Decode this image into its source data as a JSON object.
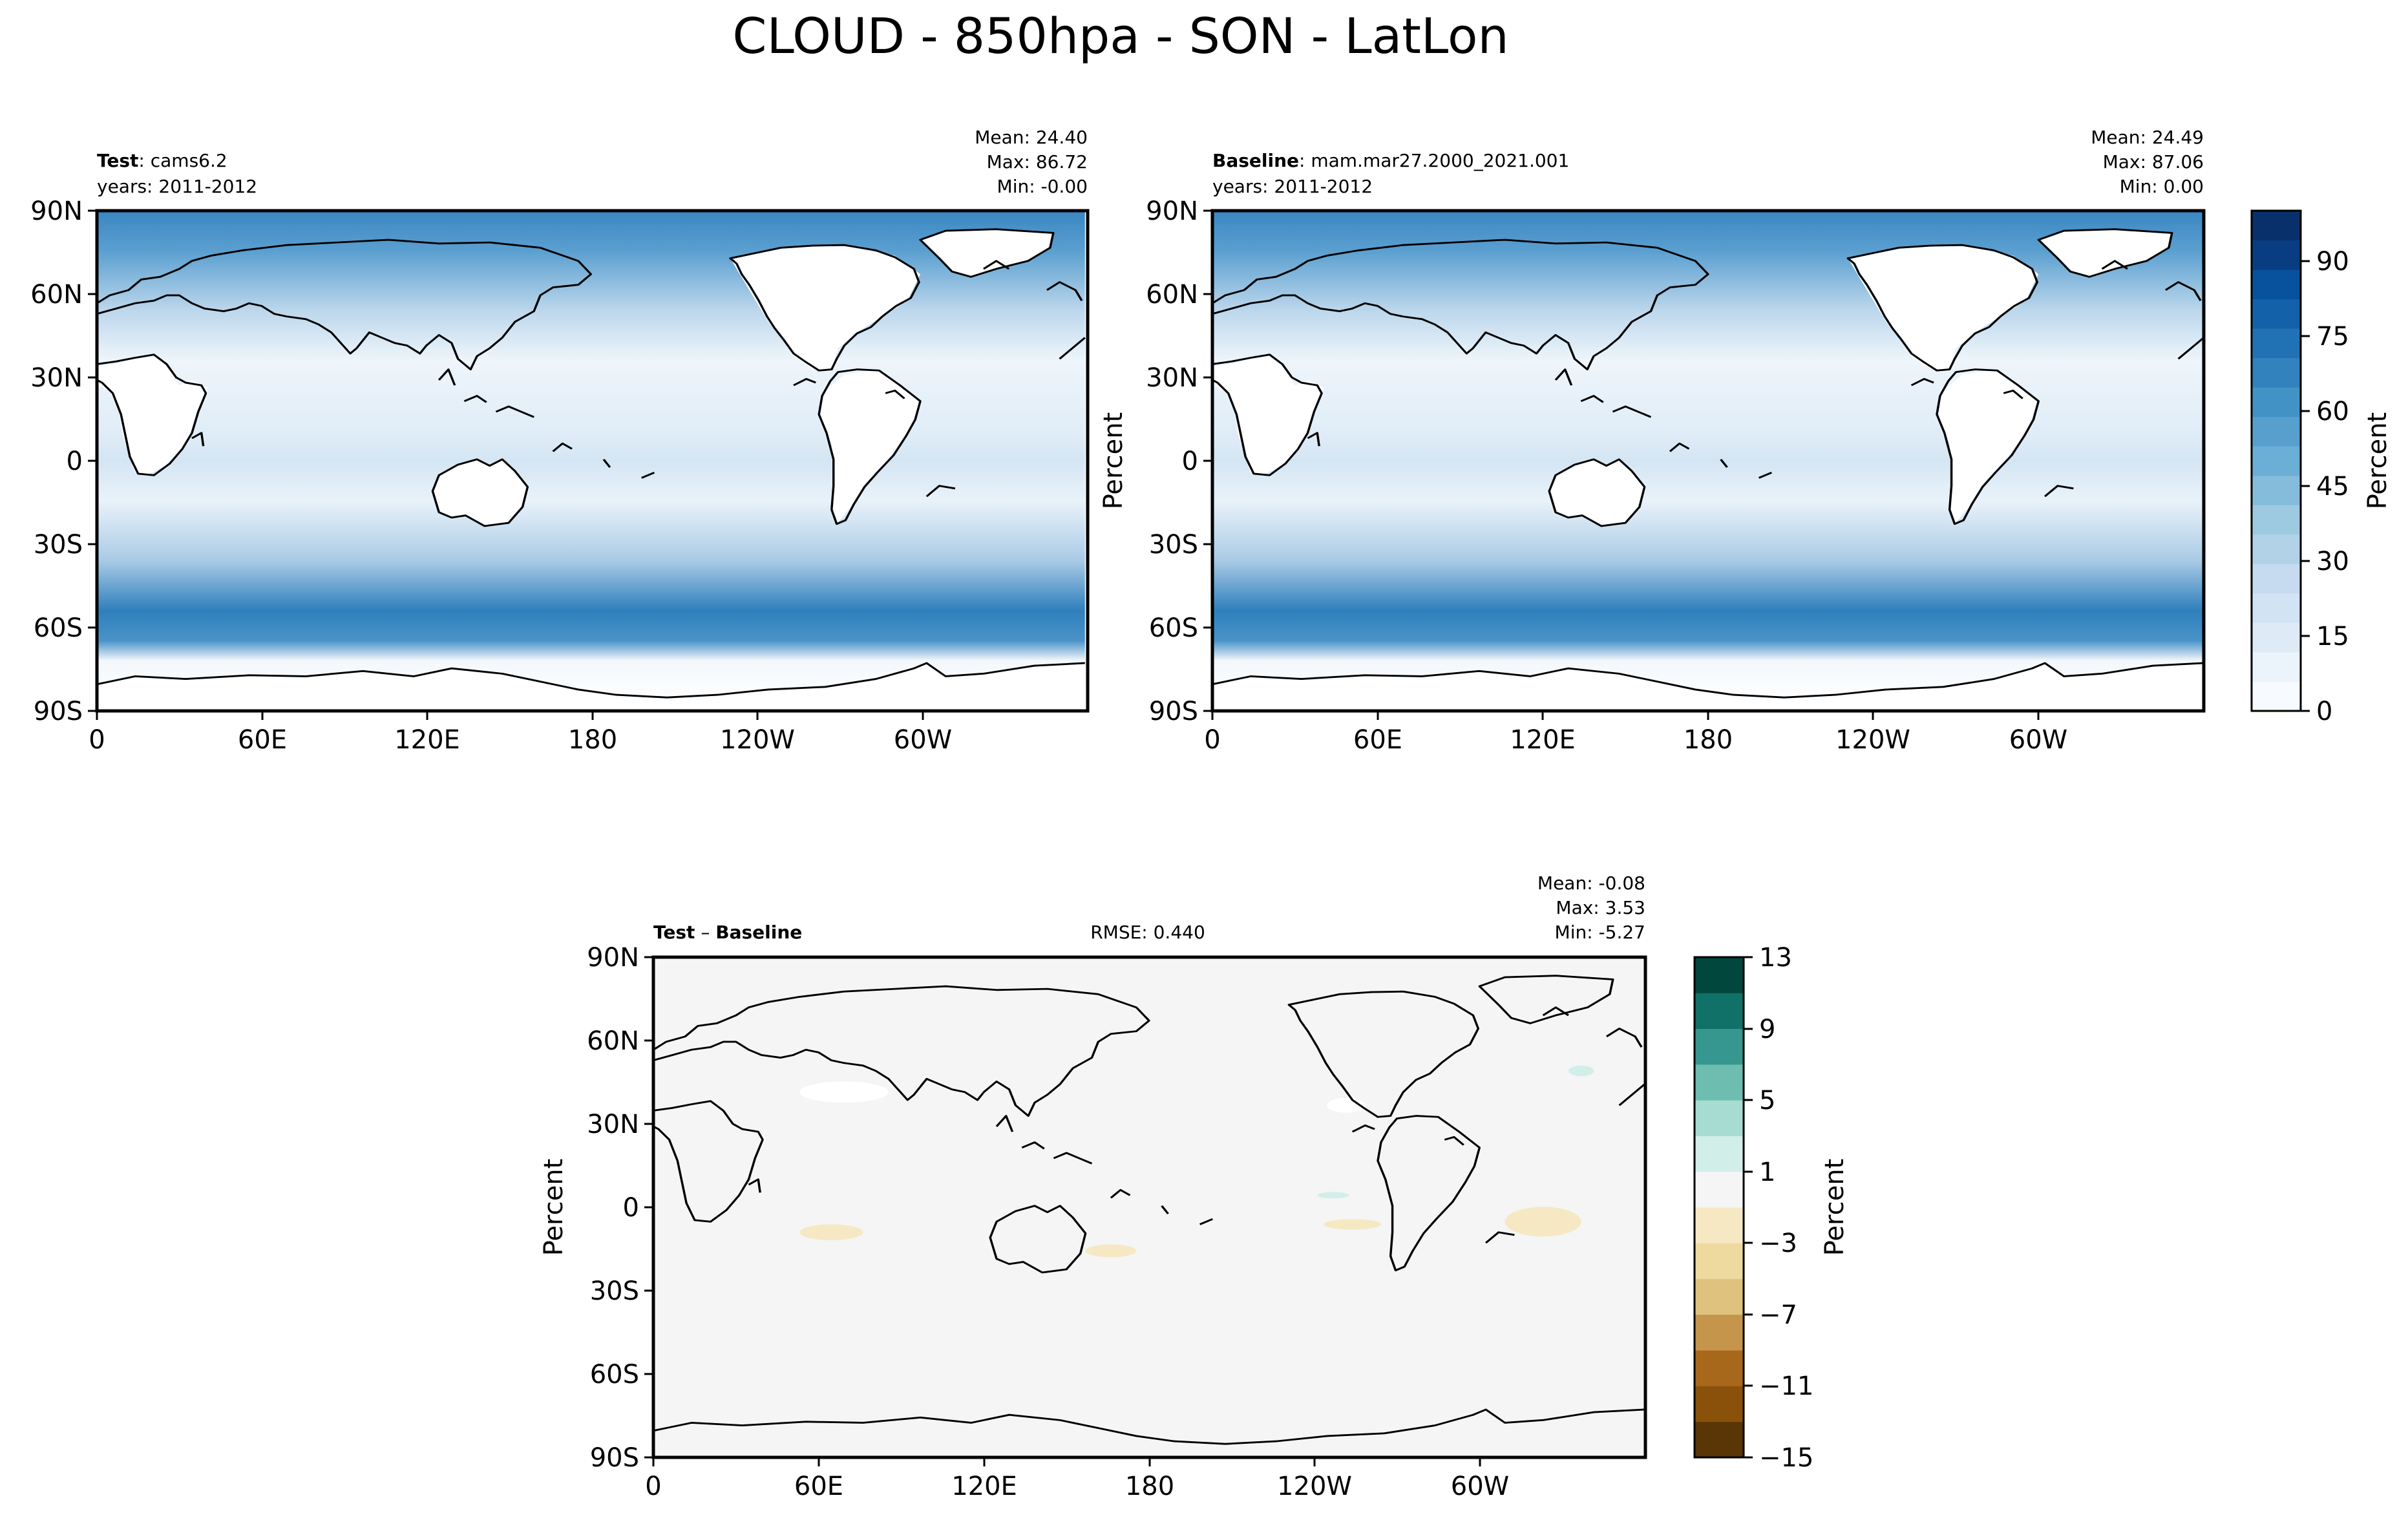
{
  "figure": {
    "title": "CLOUD - 850hpa - SON - LatLon"
  },
  "colors": {
    "blues": [
      "#f7fbff",
      "#ebf3fb",
      "#deebf7",
      "#d2e3f3",
      "#c6dbef",
      "#b2d2e8",
      "#9ecae1",
      "#85bcdb",
      "#6baed6",
      "#57a0ce",
      "#4292c6",
      "#3182bd",
      "#2171b5",
      "#1361a9",
      "#08519c",
      "#083e81",
      "#08306b"
    ],
    "brbg": [
      "#5a3505",
      "#8a510a",
      "#a8681c",
      "#c4954a",
      "#dfc27d",
      "#eeda9f",
      "#f6e8c3",
      "#f4f5f4",
      "#d2eee9",
      "#a6dcd1",
      "#6dbdb1",
      "#35978f",
      "#0f7167",
      "#01473d"
    ],
    "land_line": "#000000"
  },
  "panels": [
    {
      "id": "test",
      "label_bold": "Test",
      "label_rest": ": cams6.2",
      "years": "years: 2011-2012",
      "stats": [
        "Mean: 24.40",
        "Max: 86.72",
        "Min: -0.00"
      ],
      "xticks": [
        "0",
        "60E",
        "120E",
        "180",
        "120W",
        "60W"
      ],
      "yticks": [
        "90N",
        "60N",
        "30N",
        "0",
        "30S",
        "60S",
        "90S"
      ],
      "ylabel": ""
    },
    {
      "id": "baseline",
      "label_bold": "Baseline",
      "label_rest": ": mam.mar27.2000_2021.001",
      "years": "years: 2011-2012",
      "stats": [
        "Mean: 24.49",
        "Max: 87.06",
        "Min:  0.00"
      ],
      "xticks": [
        "0",
        "60E",
        "120E",
        "180",
        "120W",
        "60W"
      ],
      "yticks": [
        "90N",
        "60N",
        "30N",
        "0",
        "30S",
        "60S",
        "90S"
      ],
      "ylabel": "Percent"
    },
    {
      "id": "diff",
      "label_bold": "Test",
      "label_mid": " – ",
      "label_bold2": "Baseline",
      "rmse": "RMSE: 0.440",
      "stats": [
        "Mean: -0.08",
        "Max:  3.53",
        "Min: -5.27"
      ],
      "xticks": [
        "0",
        "60E",
        "120E",
        "180",
        "120W",
        "60W"
      ],
      "yticks": [
        "90N",
        "60N",
        "30N",
        "0",
        "30S",
        "60S",
        "90S"
      ],
      "ylabel": "Percent"
    }
  ],
  "colorbars": [
    {
      "ticks": [
        "0",
        "15",
        "30",
        "45",
        "60",
        "75",
        "90"
      ],
      "label": "Percent",
      "range": [
        0,
        100
      ]
    },
    {
      "ticks": [
        "13",
        "9",
        "5",
        "1",
        "−3",
        "−7",
        "−11",
        "−15"
      ],
      "label": "Percent",
      "range": [
        -15,
        13
      ]
    }
  ],
  "chart_data": [
    {
      "type": "heatmap",
      "title": "Test: cams6.2",
      "x_axis": [
        "0",
        "60E",
        "120E",
        "180",
        "120W",
        "60W"
      ],
      "y_axis": [
        "90N",
        "60N",
        "30N",
        "0",
        "30S",
        "60S",
        "90S"
      ],
      "value_range": [
        0,
        100
      ],
      "unit": "Percent",
      "mean": 24.4,
      "max": 86.72,
      "min": -0.0
    },
    {
      "type": "heatmap",
      "title": "Baseline: mam.mar27.2000_2021.001",
      "x_axis": [
        "0",
        "60E",
        "120E",
        "180",
        "120W",
        "60W"
      ],
      "y_axis": [
        "90N",
        "60N",
        "30N",
        "0",
        "30S",
        "60S",
        "90S"
      ],
      "value_range": [
        0,
        100
      ],
      "unit": "Percent",
      "mean": 24.49,
      "max": 87.06,
      "min": 0.0
    },
    {
      "type": "heatmap",
      "title": "Test – Baseline",
      "x_axis": [
        "0",
        "60E",
        "120E",
        "180",
        "120W",
        "60W"
      ],
      "y_axis": [
        "90N",
        "60N",
        "30N",
        "0",
        "30S",
        "60S",
        "90S"
      ],
      "value_range": [
        -15,
        13
      ],
      "unit": "Percent",
      "rmse": 0.44,
      "mean": -0.08,
      "max": 3.53,
      "min": -5.27
    }
  ]
}
